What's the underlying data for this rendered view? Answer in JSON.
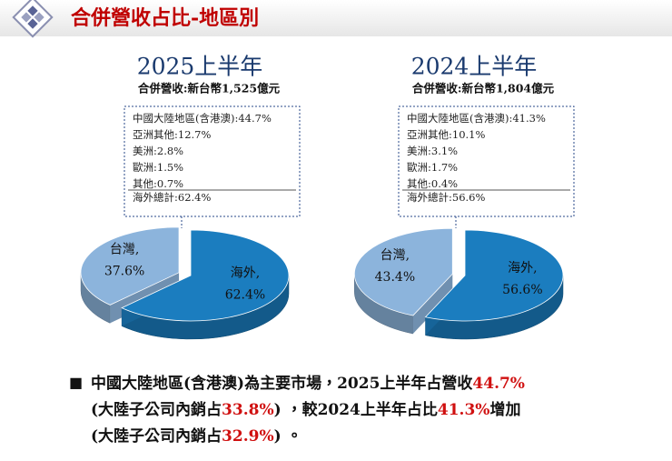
{
  "header": {
    "title": "合併營收占比-地區別"
  },
  "chart_data": [
    {
      "type": "pie",
      "title": "2025上半年",
      "subtitle": "合併營收:新台幣1,525億元",
      "categories": [
        "台灣,",
        "海外,"
      ],
      "values": [
        37.6,
        62.4
      ],
      "value_labels": [
        "37.6%",
        "62.4%"
      ],
      "colors": [
        "#8cb4dc",
        "#1b7dbf"
      ],
      "annotations": {
        "items": [
          "中國大陸地區(含港澳):44.7%",
          "亞洲其他:12.7%",
          "美洲:2.8%",
          "歐洲:1.5%",
          "其他:0.7%"
        ],
        "total": "海外總計:62.4%"
      }
    },
    {
      "type": "pie",
      "title": "2024上半年",
      "subtitle": "合併營收:新台幣1,804億元",
      "categories": [
        "台灣,",
        "海外,"
      ],
      "values": [
        43.4,
        56.6
      ],
      "value_labels": [
        "43.4%",
        "56.6%"
      ],
      "colors": [
        "#8cb4dc",
        "#1b7dbf"
      ],
      "annotations": {
        "items": [
          "中國大陸地區(含港澳):41.3%",
          "亞洲其他:10.1%",
          "美洲:3.1%",
          "歐洲:1.7%",
          "其他:0.4%"
        ],
        "total": "海外總計:56.6%"
      }
    }
  ],
  "note": {
    "bullet": "■",
    "lines": [
      [
        {
          "text": "中國大陸地區(含港澳)為主要市場，2025上半年占營收"
        },
        {
          "text": "44.7%",
          "emphasis": true
        }
      ],
      [
        {
          "text": "(大陸子公司內銷占"
        },
        {
          "text": "33.8%",
          "emphasis": true
        },
        {
          "text": ") ，較2024上半年占比"
        },
        {
          "text": "41.3%",
          "emphasis": true
        },
        {
          "text": "增加"
        }
      ],
      [
        {
          "text": "(大陸子公司內銷占"
        },
        {
          "text": "32.9%",
          "emphasis": true
        },
        {
          "text": ") 。"
        }
      ]
    ]
  }
}
